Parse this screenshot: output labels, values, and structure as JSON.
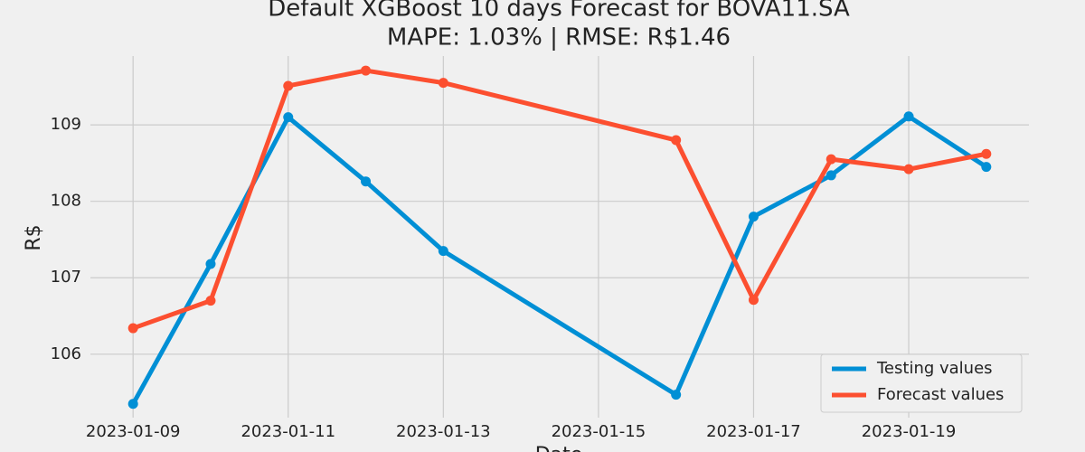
{
  "chart_data": {
    "type": "line",
    "title": "Default XGBoost 10 days Forecast for BOVA11.SA",
    "subtitle": "MAPE: 1.03% | RMSE: R$1.46",
    "x_label": "Date",
    "y_label": "R$",
    "x": [
      "2023-01-09",
      "2023-01-10",
      "2023-01-11",
      "2023-01-12",
      "2023-01-13",
      "2023-01-16",
      "2023-01-17",
      "2023-01-18",
      "2023-01-19",
      "2023-01-20"
    ],
    "series": [
      {
        "name": "Testing values",
        "color": "#008fd5",
        "values": [
          105.35,
          107.18,
          109.1,
          108.26,
          107.35,
          105.47,
          107.8,
          108.34,
          109.11,
          108.45
        ]
      },
      {
        "name": "Forecast values",
        "color": "#fc4f30",
        "values": [
          106.34,
          106.7,
          109.51,
          109.71,
          109.55,
          108.8,
          106.71,
          108.55,
          108.42,
          108.62
        ]
      }
    ],
    "xlim": [
      "2023-01-08 10:48",
      "2023-01-20 13:12"
    ],
    "xticks": [
      "2023-01-09",
      "2023-01-11",
      "2023-01-13",
      "2023-01-15",
      "2023-01-17",
      "2023-01-19"
    ],
    "ylim": [
      105.17,
      109.9
    ],
    "yticks": [
      106,
      107,
      108,
      109
    ],
    "grid": true,
    "legend": "lower right"
  }
}
